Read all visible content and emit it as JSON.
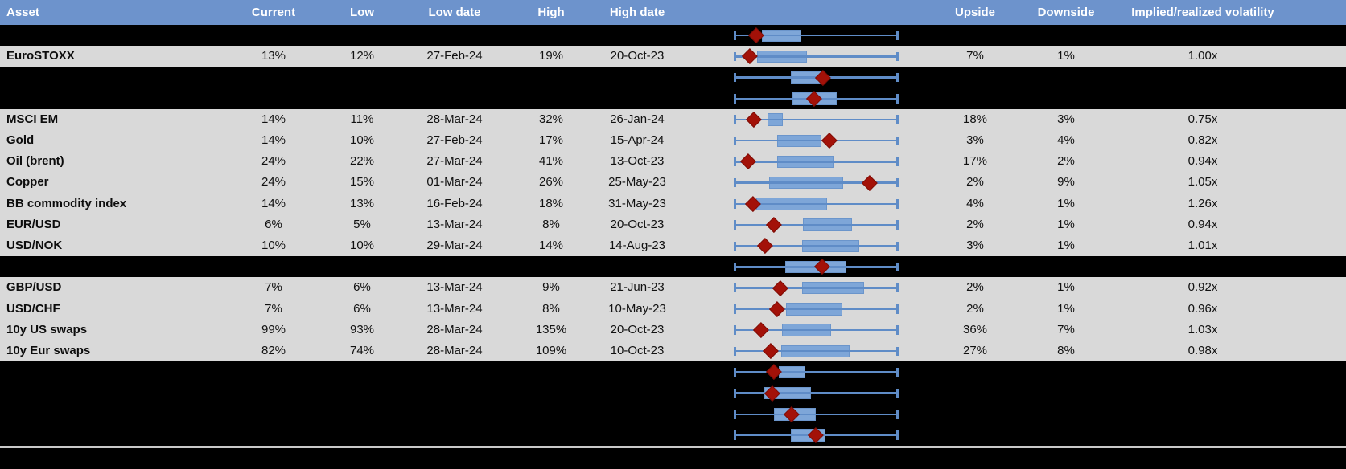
{
  "title": "Implied volatility table with 1-year range box plots",
  "colors": {
    "header_bg": "#6d93cc",
    "header_text": "#ffffff",
    "row_gray": "#d9d9d9",
    "row_black": "#000000",
    "whisker_blue": "#5f8cc7",
    "box_blue": "#7ea6d8",
    "diamond_red": "#a31108"
  },
  "header": {
    "columns": [
      {
        "key": "asset",
        "label": "Asset"
      },
      {
        "key": "current",
        "label": "Current"
      },
      {
        "key": "low",
        "label": "Low"
      },
      {
        "key": "low_date",
        "label": "Low date"
      },
      {
        "key": "high",
        "label": "High"
      },
      {
        "key": "high_date",
        "label": "High date"
      },
      {
        "key": "upside",
        "label": "Upside"
      },
      {
        "key": "downside",
        "label": "Downside"
      },
      {
        "key": "vol",
        "label": "Implied/realized volatility"
      }
    ]
  },
  "chart_data": {
    "type": "table",
    "note": "Each row also shows a horizontal box-whisker mini chart: whisker spans the full 1y range, box is the interquartile band, red diamond marks the current level. box and marker values are fractions of the whisker span (0=left cap, 1=right cap). Rows with empty labels are blacked-out/hidden rows that still display their box plot.",
    "columns": [
      "Asset",
      "Current",
      "Low",
      "Low date",
      "High",
      "High date",
      "Upside",
      "Downside",
      "Implied/realized volatility"
    ],
    "rows": [
      {
        "type": "black",
        "asset": "",
        "current": "",
        "low": "",
        "low_date": "",
        "high": "",
        "high_date": "",
        "upside": "",
        "downside": "",
        "vol": "",
        "plot": {
          "box": [
            0.17,
            0.412
          ],
          "marker": 0.134
        }
      },
      {
        "type": "data",
        "asset": "EuroSTOXX",
        "current": "13%",
        "low": "12%",
        "low_date": "27-Feb-24",
        "high": "19%",
        "high_date": "20-Oct-23",
        "upside": "7%",
        "downside": "1%",
        "vol": "1.00x",
        "plot": {
          "box": [
            0.142,
            0.444
          ],
          "marker": 0.098
        }
      },
      {
        "type": "black",
        "asset": "",
        "current": "",
        "low": "",
        "low_date": "",
        "high": "",
        "high_date": "",
        "upside": "",
        "downside": "",
        "vol": "",
        "plot": {
          "box": [
            0.346,
            0.552
          ],
          "marker": 0.54
        }
      },
      {
        "type": "black",
        "asset": "",
        "current": "",
        "low": "",
        "low_date": "",
        "high": "",
        "high_date": "",
        "upside": "",
        "downside": "",
        "vol": "",
        "plot": {
          "box": [
            0.356,
            0.624
          ],
          "marker": 0.485
        }
      },
      {
        "type": "data",
        "asset": "MSCI EM",
        "current": "14%",
        "low": "11%",
        "low_date": "28-Mar-24",
        "high": "32%",
        "high_date": "26-Jan-24",
        "upside": "18%",
        "downside": "3%",
        "vol": "0.75x",
        "plot": {
          "box": [
            0.207,
            0.297
          ],
          "marker": 0.12
        }
      },
      {
        "type": "data",
        "asset": "Gold",
        "current": "14%",
        "low": "10%",
        "low_date": "27-Feb-24",
        "high": "17%",
        "high_date": "15-Apr-24",
        "upside": "3%",
        "downside": "4%",
        "vol": "0.82x",
        "plot": {
          "box": [
            0.261,
            0.534
          ],
          "marker": 0.58
        }
      },
      {
        "type": "data",
        "asset": "Oil (brent)",
        "current": "24%",
        "low": "22%",
        "low_date": "27-Mar-24",
        "high": "41%",
        "high_date": "13-Oct-23",
        "upside": "17%",
        "downside": "2%",
        "vol": "0.94x",
        "plot": {
          "box": [
            0.265,
            0.605
          ],
          "marker": 0.085
        }
      },
      {
        "type": "data",
        "asset": "Copper",
        "current": "24%",
        "low": "15%",
        "low_date": "01-Mar-24",
        "high": "26%",
        "high_date": "25-May-23",
        "upside": "2%",
        "downside": "9%",
        "vol": "1.05x",
        "plot": {
          "box": [
            0.216,
            0.665
          ],
          "marker": 0.823
        }
      },
      {
        "type": "data",
        "asset": "BB commodity index",
        "current": "14%",
        "low": "13%",
        "low_date": "16-Feb-24",
        "high": "18%",
        "high_date": "31-May-23",
        "upside": "4%",
        "downside": "1%",
        "vol": "1.26x",
        "plot": {
          "box": [
            0.137,
            0.564
          ],
          "marker": 0.115
        }
      },
      {
        "type": "data",
        "asset": "EUR/USD",
        "current": "6%",
        "low": "5%",
        "low_date": "13-Mar-24",
        "high": "8%",
        "high_date": "20-Oct-23",
        "upside": "2%",
        "downside": "1%",
        "vol": "0.94x",
        "plot": {
          "box": [
            0.42,
            0.717
          ],
          "marker": 0.243
        }
      },
      {
        "type": "data",
        "asset": "USD/NOK",
        "current": "10%",
        "low": "10%",
        "low_date": "29-Mar-24",
        "high": "14%",
        "high_date": "14-Aug-23",
        "upside": "3%",
        "downside": "1%",
        "vol": "1.01x",
        "plot": {
          "box": [
            0.417,
            0.763
          ],
          "marker": 0.191
        }
      },
      {
        "type": "black",
        "asset": "",
        "current": "",
        "low": "",
        "low_date": "",
        "high": "",
        "high_date": "",
        "upside": "",
        "downside": "",
        "vol": "",
        "plot": {
          "box": [
            0.31,
            0.681
          ],
          "marker": 0.534
        }
      },
      {
        "type": "data",
        "asset": "GBP/USD",
        "current": "7%",
        "low": "6%",
        "low_date": "13-Mar-24",
        "high": "9%",
        "high_date": "21-Jun-23",
        "upside": "2%",
        "downside": "1%",
        "vol": "0.92x",
        "plot": {
          "box": [
            0.417,
            0.791
          ],
          "marker": 0.281
        }
      },
      {
        "type": "data",
        "asset": "USD/CHF",
        "current": "7%",
        "low": "6%",
        "low_date": "13-Mar-24",
        "high": "8%",
        "high_date": "10-May-23",
        "upside": "2%",
        "downside": "1%",
        "vol": "0.96x",
        "plot": {
          "box": [
            0.317,
            0.657
          ],
          "marker": 0.261
        }
      },
      {
        "type": "data",
        "asset": "10y US swaps",
        "current": "99%",
        "low": "93%",
        "low_date": "28-Mar-24",
        "high": "135%",
        "high_date": "20-Oct-23",
        "upside": "36%",
        "downside": "7%",
        "vol": "1.03x",
        "plot": {
          "box": [
            0.294,
            0.588
          ],
          "marker": 0.163
        }
      },
      {
        "type": "data",
        "asset": "10y Eur swaps",
        "current": "82%",
        "low": "74%",
        "low_date": "28-Mar-24",
        "high": "109%",
        "high_date": "10-Oct-23",
        "upside": "27%",
        "downside": "8%",
        "vol": "0.98x",
        "plot": {
          "box": [
            0.289,
            0.702
          ],
          "marker": 0.224
        }
      },
      {
        "type": "black",
        "asset": "",
        "current": "",
        "low": "",
        "low_date": "",
        "high": "",
        "high_date": "",
        "upside": "",
        "downside": "",
        "vol": "",
        "plot": {
          "box": [
            0.271,
            0.433
          ],
          "marker": 0.242
        }
      },
      {
        "type": "black",
        "asset": "",
        "current": "",
        "low": "",
        "low_date": "",
        "high": "",
        "high_date": "",
        "upside": "",
        "downside": "",
        "vol": "",
        "plot": {
          "box": [
            0.183,
            0.467
          ],
          "marker": 0.232
        }
      },
      {
        "type": "black",
        "asset": "",
        "current": "",
        "low": "",
        "low_date": "",
        "high": "",
        "high_date": "",
        "upside": "",
        "downside": "",
        "vol": "",
        "plot": {
          "box": [
            0.246,
            0.497
          ],
          "marker": 0.35
        }
      },
      {
        "type": "black",
        "asset": "",
        "current": "",
        "low": "",
        "low_date": "",
        "high": "",
        "high_date": "",
        "upside": "",
        "downside": "",
        "vol": "",
        "plot": {
          "box": [
            0.344,
            0.557
          ],
          "marker": 0.497
        }
      }
    ]
  }
}
